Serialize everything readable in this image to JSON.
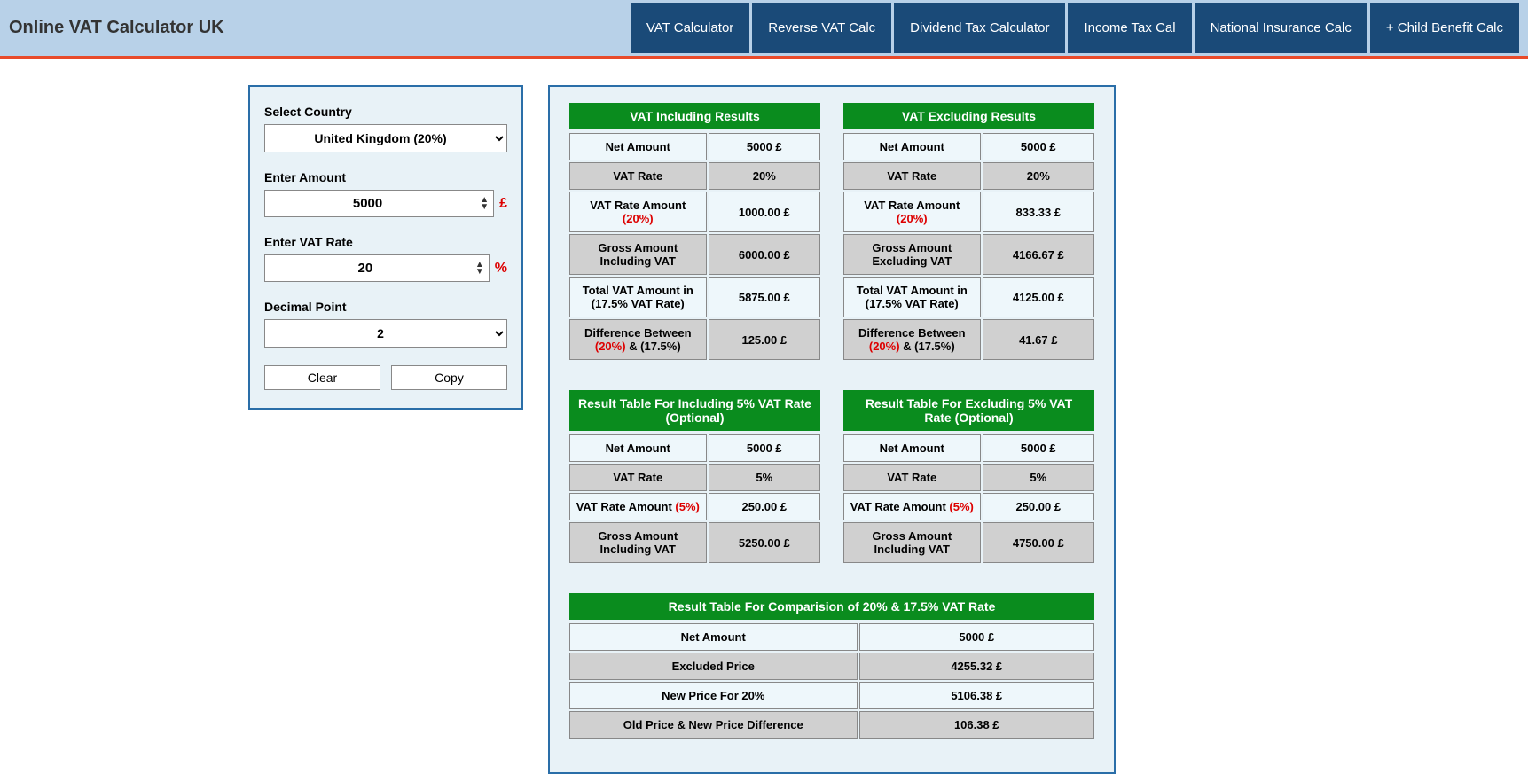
{
  "header": {
    "title": "Online VAT Calculator UK",
    "nav": [
      "VAT Calculator",
      "Reverse VAT Calc",
      "Dividend Tax Calculator",
      "Income Tax Cal",
      "National Insurance Calc",
      "+ Child Benefit Calc"
    ]
  },
  "form": {
    "country_label": "Select Country",
    "country_value": "United Kingdom (20%)",
    "amount_label": "Enter Amount",
    "amount_value": "5000",
    "amount_suffix": "£",
    "rate_label": "Enter VAT Rate",
    "rate_value": "20",
    "rate_suffix": "%",
    "decimal_label": "Decimal Point",
    "decimal_value": "2",
    "clear_label": "Clear",
    "copy_label": "Copy"
  },
  "vat_including": {
    "title": "VAT Including Results",
    "rows": [
      {
        "label_pre": "Net Amount",
        "label_red": "",
        "label_post": "",
        "value": "5000 £"
      },
      {
        "label_pre": "VAT Rate",
        "label_red": "",
        "label_post": "",
        "value": "20%"
      },
      {
        "label_pre": "VAT Rate Amount ",
        "label_red": "(20%)",
        "label_post": "",
        "value": "1000.00 £"
      },
      {
        "label_pre": "Gross Amount Including VAT",
        "label_red": "",
        "label_post": "",
        "value": "6000.00 £"
      },
      {
        "label_pre": "Total VAT Amount in (17.5% VAT Rate)",
        "label_red": "",
        "label_post": "",
        "value": "5875.00 £"
      },
      {
        "label_pre": "Difference Between ",
        "label_red": "(20%)",
        "label_post": " & (17.5%)",
        "value": "125.00 £"
      }
    ]
  },
  "vat_excluding": {
    "title": "VAT Excluding Results",
    "rows": [
      {
        "label_pre": "Net Amount",
        "label_red": "",
        "label_post": "",
        "value": "5000 £"
      },
      {
        "label_pre": "VAT Rate",
        "label_red": "",
        "label_post": "",
        "value": "20%"
      },
      {
        "label_pre": "VAT Rate Amount ",
        "label_red": "(20%)",
        "label_post": "",
        "value": "833.33 £"
      },
      {
        "label_pre": "Gross Amount Excluding VAT",
        "label_red": "",
        "label_post": "",
        "value": "4166.67 £"
      },
      {
        "label_pre": "Total VAT Amount in (17.5% VAT Rate)",
        "label_red": "",
        "label_post": "",
        "value": "4125.00 £"
      },
      {
        "label_pre": "Difference Between ",
        "label_red": "(20%)",
        "label_post": " & (17.5%)",
        "value": "41.67 £"
      }
    ]
  },
  "including_5": {
    "title": "Result Table For Including 5% VAT Rate (Optional)",
    "rows": [
      {
        "label_pre": "Net Amount",
        "label_red": "",
        "label_post": "",
        "value": "5000 £"
      },
      {
        "label_pre": "VAT Rate",
        "label_red": "",
        "label_post": "",
        "value": "5%"
      },
      {
        "label_pre": "VAT Rate Amount ",
        "label_red": "(5%)",
        "label_post": "",
        "value": "250.00 £"
      },
      {
        "label_pre": "Gross Amount Including VAT",
        "label_red": "",
        "label_post": "",
        "value": "5250.00 £"
      }
    ]
  },
  "excluding_5": {
    "title": "Result Table For Excluding 5% VAT Rate (Optional)",
    "rows": [
      {
        "label_pre": "Net Amount",
        "label_red": "",
        "label_post": "",
        "value": "5000 £"
      },
      {
        "label_pre": "VAT Rate",
        "label_red": "",
        "label_post": "",
        "value": "5%"
      },
      {
        "label_pre": "VAT Rate Amount ",
        "label_red": "(5%)",
        "label_post": "",
        "value": "250.00 £"
      },
      {
        "label_pre": "Gross Amount Including VAT",
        "label_red": "",
        "label_post": "",
        "value": "4750.00 £"
      }
    ]
  },
  "comparison": {
    "title": "Result Table For Comparision of 20% & 17.5% VAT Rate",
    "rows": [
      {
        "label": "Net Amount",
        "value": "5000 £"
      },
      {
        "label": "Excluded Price",
        "value": "4255.32 £"
      },
      {
        "label": "New Price For 20%",
        "value": "5106.38 £"
      },
      {
        "label": "Old Price & New Price Difference",
        "value": "106.38 £"
      }
    ]
  },
  "colors": {
    "header_bg": "#b8d1e8",
    "nav_bg": "#1a4a78",
    "accent_border": "#e84a2a",
    "panel_bg": "#e8f2f7",
    "panel_border": "#2a6ea8",
    "table_header": "#0a8c1e",
    "row_odd": "#eef7fb",
    "row_even": "#d0d0d0",
    "red": "#d00"
  }
}
